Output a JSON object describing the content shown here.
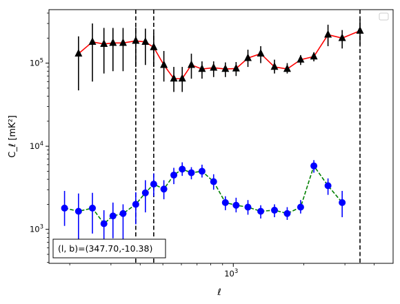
{
  "chart_data": {
    "type": "line",
    "xlabel": "ℓ",
    "ylabel": "C_ℓ [mK²]",
    "xscale": "log",
    "yscale": "log",
    "xlim": [
      163,
      4820
    ],
    "ylim": [
      390,
      440000
    ],
    "grid": false,
    "legend_location": "upper right",
    "x_tick_labels": [
      "10^3"
    ],
    "y_tick_labels": [
      "10^3",
      "10^4",
      "10^5"
    ],
    "annotation": "(l, b)=(347.70,-10.38)",
    "vlines": [
      383,
      457,
      3480
    ],
    "x": [
      190,
      218,
      250,
      280,
      306,
      338,
      383,
      421,
      457,
      505,
      557,
      605,
      662,
      735,
      824,
      925,
      1028,
      1155,
      1310,
      1500,
      1700,
      1940,
      2210,
      2540,
      2920,
      3480,
      3900,
      4480
    ],
    "series": [
      {
        "color": "#000000",
        "line_color": "#ff0000",
        "linestyle": "solid",
        "marker": "triangle",
        "values": [
          null,
          130000,
          180000,
          170000,
          175000,
          175000,
          185000,
          180000,
          155000,
          95000,
          65000,
          65000,
          95000,
          85000,
          88000,
          85000,
          86000,
          115000,
          130000,
          90000,
          85000,
          110000,
          120000,
          220000,
          200000,
          245000,
          null,
          null
        ],
        "error_low": [
          null,
          47000,
          60000,
          75000,
          80000,
          80000,
          90000,
          95000,
          90000,
          60000,
          45000,
          45000,
          65000,
          65000,
          68000,
          68000,
          70000,
          90000,
          100000,
          75000,
          75000,
          95000,
          105000,
          160000,
          150000,
          165000,
          null,
          null
        ],
        "error_high": [
          null,
          210000,
          300000,
          265000,
          265000,
          265000,
          270000,
          260000,
          230000,
          140000,
          90000,
          90000,
          130000,
          105000,
          105000,
          102000,
          103000,
          145000,
          160000,
          110000,
          100000,
          125000,
          135000,
          290000,
          250000,
          340000,
          null,
          null
        ]
      },
      {
        "color": "#0000ff",
        "line_color": "#008000",
        "linestyle": "dashed",
        "marker": "circle",
        "values": [
          1800,
          1650,
          1800,
          1170,
          1450,
          1550,
          2000,
          2750,
          3500,
          3050,
          4500,
          5300,
          4800,
          5000,
          3750,
          2100,
          1950,
          1850,
          1650,
          1700,
          1550,
          1850,
          5800,
          3350,
          2100,
          null,
          null,
          null
        ],
        "error_low": [
          1100,
          720,
          890,
          720,
          780,
          700,
          1150,
          1600,
          2500,
          2300,
          3500,
          4400,
          4000,
          4200,
          3000,
          1700,
          1600,
          1500,
          1350,
          1400,
          1300,
          1550,
          4800,
          2600,
          1400,
          null,
          null,
          null
        ],
        "error_high": [
          2900,
          2700,
          2750,
          1700,
          2100,
          2000,
          2800,
          3900,
          4700,
          3900,
          5500,
          6400,
          5600,
          6000,
          4600,
          2500,
          2400,
          2250,
          1950,
          2000,
          1850,
          2250,
          6800,
          4100,
          2900,
          null,
          null,
          null
        ]
      }
    ]
  }
}
